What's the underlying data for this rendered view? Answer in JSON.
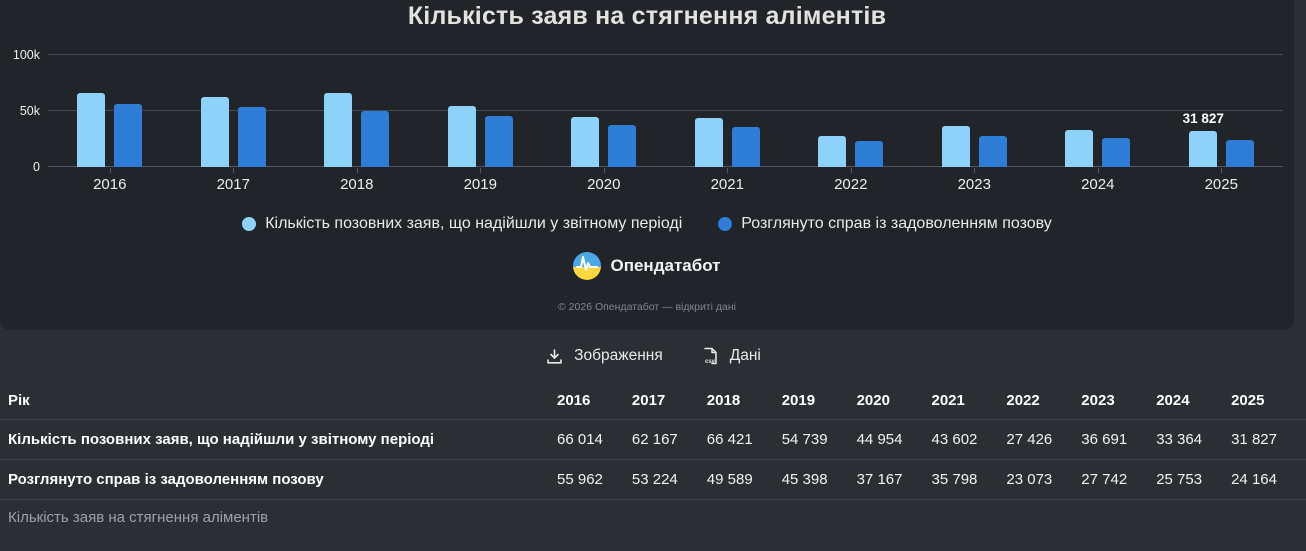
{
  "title": "Кількість заяв на стягнення аліментів",
  "chart_data": {
    "type": "bar",
    "title": "Кількість заяв на стягнення аліментів",
    "categories": [
      "2016",
      "2017",
      "2018",
      "2019",
      "2020",
      "2021",
      "2022",
      "2023",
      "2024",
      "2025"
    ],
    "series": [
      {
        "name": "Кількість позовних заяв, що надійшли у звітному періоді",
        "color": "#8cd2fb",
        "values": [
          66014,
          62167,
          66421,
          54739,
          44954,
          43602,
          27426,
          36691,
          33364,
          31827
        ]
      },
      {
        "name": "Розглянуто справ із задоволенням позову",
        "color": "#2e7dd7",
        "values": [
          55962,
          53224,
          49589,
          45398,
          37167,
          35798,
          23073,
          27742,
          25753,
          24164
        ]
      }
    ],
    "ylim": [
      0,
      100000
    ],
    "yticks": [
      {
        "value": 0,
        "label": "0"
      },
      {
        "value": 50000,
        "label": "50k"
      },
      {
        "value": 100000,
        "label": "100k"
      }
    ],
    "grid": true,
    "legend_position": "bottom",
    "data_label": {
      "series_index": 0,
      "category_index": 9,
      "text": "31 827"
    }
  },
  "branding": {
    "logo_icon": "opendatabot-logo",
    "logo_text": "Опендатабот",
    "copyright": "© 2026 Опендатабот — відкриті дані"
  },
  "toolbar": {
    "image_button": "Зображення",
    "data_button": "Дані"
  },
  "table": {
    "header": [
      "Рік",
      "2016",
      "2017",
      "2018",
      "2019",
      "2020",
      "2021",
      "2022",
      "2023",
      "2024",
      "2025"
    ],
    "rows": [
      {
        "label": "Кількість позовних заяв, що надійшли у звітному періоді",
        "values": [
          "66 014",
          "62 167",
          "66 421",
          "54 739",
          "44 954",
          "43 602",
          "27 426",
          "36 691",
          "33 364",
          "31 827"
        ]
      },
      {
        "label": "Розглянуто справ із задоволенням позову",
        "values": [
          "55 962",
          "53 224",
          "49 589",
          "45 398",
          "37 167",
          "35 798",
          "23 073",
          "27 742",
          "25 753",
          "24 164"
        ]
      }
    ]
  },
  "caption": "Кількість заяв на стягнення аліментів",
  "colors": {
    "page_bg": "#2b2f34",
    "card_bg": "#212429",
    "series_light": "#8cd2fb",
    "series_dark": "#2e7dd7",
    "gridline": "#45494f",
    "divider": "#3e4248"
  }
}
